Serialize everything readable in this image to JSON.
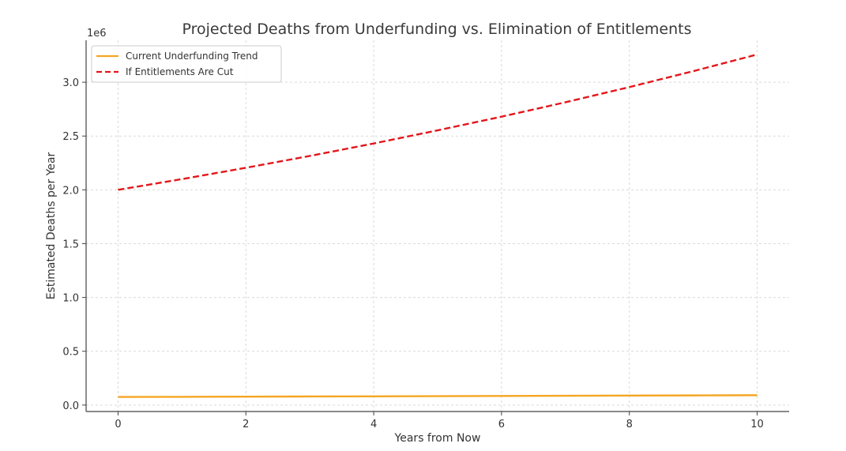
{
  "chart_data": {
    "type": "line",
    "title": "Projected Deaths from Underfunding vs. Elimination of Entitlements",
    "xlabel": "Years from Now",
    "ylabel": "Estimated Deaths per Year",
    "y_scale_label": "1e6",
    "xlim": [
      -0.5,
      10.5
    ],
    "ylim": [
      -0.06,
      3.39
    ],
    "grid": true,
    "legend_position": "top-left",
    "x_ticks": [
      0,
      2,
      4,
      6,
      8,
      10
    ],
    "x_tick_labels": [
      "0",
      "2",
      "4",
      "6",
      "8",
      "10"
    ],
    "y_ticks": [
      0.0,
      0.5,
      1.0,
      1.5,
      2.0,
      2.5,
      3.0
    ],
    "y_tick_labels": [
      "0.0",
      "0.5",
      "1.0",
      "1.5",
      "2.0",
      "2.5",
      "3.0"
    ],
    "x": [
      0,
      1,
      2,
      3,
      4,
      5,
      6,
      7,
      8,
      9,
      10
    ],
    "series": [
      {
        "name": "Current Underfunding Trend",
        "color": "#f5a623",
        "style": "solid",
        "values": [
          0.075,
          0.0765,
          0.078,
          0.0796,
          0.0812,
          0.0828,
          0.0845,
          0.0862,
          0.0879,
          0.0896,
          0.0914
        ]
      },
      {
        "name": "If Entitlements Are Cut",
        "color": "#e3161b",
        "style": "dashed",
        "values": [
          2.0,
          2.1,
          2.205,
          2.315,
          2.431,
          2.553,
          2.68,
          2.814,
          2.955,
          3.103,
          3.258
        ]
      }
    ]
  }
}
